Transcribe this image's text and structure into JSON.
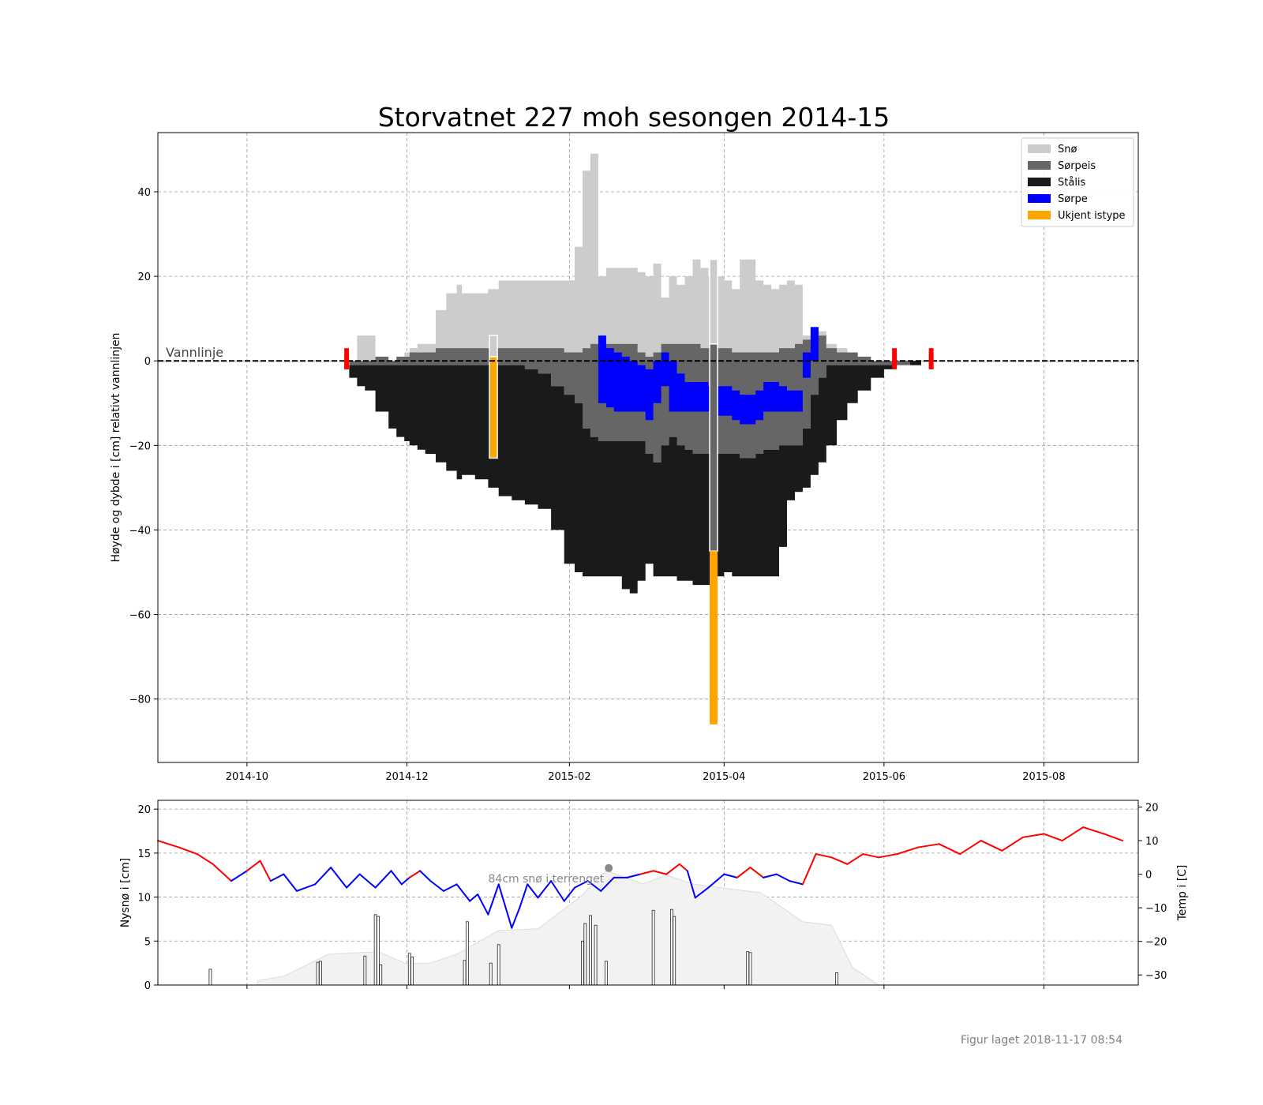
{
  "figure_footer": "Figur laget 2018-11-17 08:54",
  "colors": {
    "snow": "#cccccc",
    "slush_ice": "#666666",
    "black_ice": "#1a1a1a",
    "slush": "#0000ff",
    "unknown_ice": "#ffa500",
    "temp_warm": "#ff0000",
    "temp_cold": "#0000ff",
    "snow_depth_fill": "#f2f2f2",
    "red_marker": "#ff0000"
  },
  "chart_data": [
    {
      "type": "area",
      "title": "Storvatnet 227 moh sesongen 2014-15",
      "ylabel": "Høyde og dybde i [cm] relativt vannlinjen",
      "xlabel": "",
      "xlim": [
        "2014-08-28",
        "2015-09-06"
      ],
      "ylim": [
        -95,
        54
      ],
      "x_ticks": [
        "2014-10",
        "2014-12",
        "2015-02",
        "2015-04",
        "2015-06",
        "2015-08"
      ],
      "x_tick_dates": [
        "2014-10-01",
        "2014-12-01",
        "2015-02-01",
        "2015-04-01",
        "2015-06-01",
        "2015-08-01"
      ],
      "y_ticks": [
        40,
        20,
        0,
        -20,
        -40,
        -60,
        -80
      ],
      "grid": true,
      "legend_position": "top-right",
      "legend": [
        "Snø",
        "Sørpeis",
        "Stålis",
        "Sørpe",
        "Ukjent istype"
      ],
      "annotation": "Vannlinje",
      "waterline": 0,
      "red_markers": [
        "2014-11-08",
        "2015-06-05",
        "2015-06-19"
      ],
      "ice_profile": {
        "dates": [
          "2014-11-09",
          "2014-11-12",
          "2014-11-15",
          "2014-11-19",
          "2014-11-24",
          "2014-11-27",
          "2014-11-30",
          "2014-12-02",
          "2014-12-05",
          "2014-12-08",
          "2014-12-12",
          "2014-12-16",
          "2014-12-20",
          "2014-12-22",
          "2014-12-24",
          "2014-12-27",
          "2014-12-29",
          "2015-01-01",
          "2015-01-05",
          "2015-01-10",
          "2015-01-15",
          "2015-01-20",
          "2015-01-25",
          "2015-01-30",
          "2015-02-03",
          "2015-02-06",
          "2015-02-09",
          "2015-02-12",
          "2015-02-15",
          "2015-02-18",
          "2015-02-21",
          "2015-02-24",
          "2015-02-27",
          "2015-03-02",
          "2015-03-05",
          "2015-03-08",
          "2015-03-11",
          "2015-03-14",
          "2015-03-17",
          "2015-03-20",
          "2015-03-23",
          "2015-03-26",
          "2015-03-29",
          "2015-04-01",
          "2015-04-04",
          "2015-04-07",
          "2015-04-10",
          "2015-04-13",
          "2015-04-16",
          "2015-04-19",
          "2015-04-22",
          "2015-04-25",
          "2015-04-28",
          "2015-05-01",
          "2015-05-04",
          "2015-05-07",
          "2015-05-10",
          "2015-05-14",
          "2015-05-18",
          "2015-05-22",
          "2015-05-27",
          "2015-06-01",
          "2015-06-05",
          "2015-06-08",
          "2015-06-11",
          "2015-06-14"
        ],
        "snow_top": [
          0,
          6,
          6,
          1,
          0,
          1,
          2,
          3,
          4,
          4,
          12,
          16,
          18,
          16,
          16,
          16,
          16,
          17,
          19,
          19,
          19,
          19,
          19,
          19,
          27,
          45,
          49,
          20,
          22,
          22,
          22,
          22,
          21,
          20,
          23,
          15,
          20,
          18,
          20,
          24,
          22,
          20,
          20,
          19,
          17,
          24,
          24,
          19,
          18,
          17,
          18,
          19,
          18,
          6,
          8,
          7,
          4,
          3,
          2,
          1,
          0,
          0,
          0,
          0,
          0,
          0
        ],
        "slush_ice_top": [
          0,
          0,
          0,
          1,
          0,
          1,
          1,
          2,
          2,
          2,
          3,
          3,
          3,
          3,
          3,
          3,
          3,
          3,
          3,
          3,
          3,
          3,
          3,
          2,
          2,
          3,
          4,
          4,
          4,
          4,
          4,
          4,
          2,
          1,
          2,
          4,
          4,
          4,
          4,
          4,
          3,
          3,
          3,
          3,
          2,
          2,
          2,
          2,
          2,
          2,
          3,
          3,
          4,
          5,
          8,
          6,
          3,
          2,
          2,
          1,
          0,
          0,
          0,
          0,
          0,
          0
        ],
        "slush_top": [
          0,
          0,
          0,
          0,
          0,
          0,
          0,
          0,
          0,
          0,
          0,
          0,
          0,
          0,
          0,
          0,
          0,
          0,
          0,
          0,
          0,
          0,
          0,
          0,
          0,
          0,
          0,
          6,
          3,
          2,
          1,
          0,
          -1,
          -2,
          0,
          2,
          0,
          -3,
          -5,
          -5,
          -5,
          -6,
          -6,
          -6,
          -7,
          -8,
          -8,
          -7,
          -5,
          -5,
          -6,
          -7,
          -7,
          2,
          8,
          0,
          0,
          0,
          0,
          0,
          0,
          0,
          0,
          0,
          0,
          0
        ],
        "slush_bottom": [
          0,
          0,
          0,
          0,
          0,
          0,
          0,
          0,
          0,
          0,
          0,
          0,
          0,
          0,
          0,
          0,
          0,
          0,
          0,
          0,
          0,
          0,
          0,
          0,
          0,
          0,
          0,
          -10,
          -11,
          -12,
          -12,
          -12,
          -12,
          -14,
          -10,
          -6,
          -12,
          -12,
          -12,
          -12,
          -12,
          -12,
          -13,
          -13,
          -14,
          -15,
          -15,
          -14,
          -12,
          -12,
          -12,
          -12,
          -12,
          -4,
          0,
          0,
          0,
          0,
          0,
          0,
          0,
          0,
          0,
          0,
          0,
          0
        ],
        "black_ice_top": [
          -1,
          -1,
          -1,
          -1,
          -1,
          -1,
          -1,
          -1,
          -1,
          -1,
          -1,
          -1,
          -1,
          -1,
          -1,
          -1,
          -1,
          -1,
          -1,
          -1,
          -2,
          -3,
          -6,
          -8,
          -10,
          -16,
          -18,
          -19,
          -19,
          -19,
          -19,
          -19,
          -19,
          -22,
          -24,
          -20,
          -18,
          -20,
          -21,
          -22,
          -22,
          -22,
          -22,
          -22,
          -22,
          -23,
          -23,
          -22,
          -21,
          -21,
          -20,
          -20,
          -20,
          -16,
          -8,
          -4,
          -1,
          -1,
          -1,
          -1,
          -1,
          -1,
          -1,
          -1,
          -1,
          -1
        ],
        "ice_bottom": [
          -4,
          -6,
          -7,
          -12,
          -16,
          -18,
          -19,
          -20,
          -21,
          -22,
          -24,
          -26,
          -28,
          -27,
          -27,
          -28,
          -28,
          -30,
          -32,
          -33,
          -34,
          -35,
          -40,
          -48,
          -50,
          -51,
          -51,
          -51,
          -51,
          -51,
          -54,
          -55,
          -52,
          -48,
          -51,
          -51,
          -51,
          -52,
          -52,
          -53,
          -53,
          -53,
          -51,
          -50,
          -51,
          -51,
          -51,
          -51,
          -51,
          -51,
          -44,
          -33,
          -31,
          -30,
          -27,
          -24,
          -20,
          -14,
          -10,
          -7,
          -4,
          -2,
          -1,
          -1,
          0,
          0
        ]
      },
      "point_measurements": [
        {
          "date": "2015-01-03",
          "snow_top": 6,
          "unknown_top": 1,
          "unknown_bottom": -23
        },
        {
          "date": "2015-03-28",
          "snow_top": 24,
          "slush_ice_top": 4,
          "slush_ice_bottom": -45,
          "unknown_bottom": -86
        }
      ]
    },
    {
      "type": "bar",
      "ylabel": "Nysnø i [cm]",
      "ylabel_right": "Temp i [C]",
      "ylim": [
        0,
        21
      ],
      "y_ticks": [
        0,
        5,
        10,
        15,
        20
      ],
      "ylim_right": [
        -33,
        22
      ],
      "y_ticks_right": [
        20,
        10,
        0,
        -10,
        -20,
        -30
      ],
      "grid": true,
      "annotation": "84cm snø i terrenget",
      "annotation_point": {
        "date": "2015-02-16",
        "value": 13.3
      },
      "new_snow": [
        {
          "date": "2014-09-17",
          "value": 1.8
        },
        {
          "date": "2014-10-28",
          "value": 2.6
        },
        {
          "date": "2014-10-29",
          "value": 2.7
        },
        {
          "date": "2014-11-15",
          "value": 3.3
        },
        {
          "date": "2014-11-19",
          "value": 8.0
        },
        {
          "date": "2014-11-20",
          "value": 7.8
        },
        {
          "date": "2014-11-21",
          "value": 2.3
        },
        {
          "date": "2014-12-02",
          "value": 3.6
        },
        {
          "date": "2014-12-03",
          "value": 3.2
        },
        {
          "date": "2014-12-23",
          "value": 2.8
        },
        {
          "date": "2014-12-24",
          "value": 7.2
        },
        {
          "date": "2015-01-02",
          "value": 2.5
        },
        {
          "date": "2015-01-05",
          "value": 4.6
        },
        {
          "date": "2015-02-06",
          "value": 5.0
        },
        {
          "date": "2015-02-07",
          "value": 7.0
        },
        {
          "date": "2015-02-09",
          "value": 7.9
        },
        {
          "date": "2015-02-11",
          "value": 6.8
        },
        {
          "date": "2015-02-15",
          "value": 2.7
        },
        {
          "date": "2015-03-05",
          "value": 8.5
        },
        {
          "date": "2015-03-12",
          "value": 8.6
        },
        {
          "date": "2015-03-13",
          "value": 7.8
        },
        {
          "date": "2015-04-10",
          "value": 3.8
        },
        {
          "date": "2015-04-11",
          "value": 3.7
        },
        {
          "date": "2015-05-14",
          "value": 1.4
        }
      ],
      "snow_depth_terrain": {
        "dates": [
          "2014-10-05",
          "2014-10-15",
          "2014-11-01",
          "2014-11-20",
          "2014-12-01",
          "2014-12-10",
          "2014-12-20",
          "2015-01-05",
          "2015-01-20",
          "2015-02-05",
          "2015-02-15",
          "2015-03-01",
          "2015-03-10",
          "2015-03-20",
          "2015-04-01",
          "2015-04-15",
          "2015-05-01",
          "2015-05-12",
          "2015-05-20",
          "2015-05-30"
        ],
        "values": [
          0.5,
          1.0,
          3.5,
          3.8,
          2.4,
          2.5,
          3.5,
          6.2,
          6.4,
          10.0,
          13.0,
          11.5,
          12.5,
          11.5,
          11.0,
          10.5,
          7.2,
          6.8,
          2.0,
          0
        ]
      },
      "temperature": {
        "dates": [
          "2014-08-28",
          "2014-09-05",
          "2014-09-12",
          "2014-09-18",
          "2014-09-25",
          "2014-10-01",
          "2014-10-06",
          "2014-10-10",
          "2014-10-15",
          "2014-10-20",
          "2014-10-27",
          "2014-11-02",
          "2014-11-08",
          "2014-11-13",
          "2014-11-19",
          "2014-11-25",
          "2014-11-29",
          "2014-12-02",
          "2014-12-06",
          "2014-12-10",
          "2014-12-15",
          "2014-12-20",
          "2014-12-25",
          "2014-12-28",
          "2015-01-01",
          "2015-01-05",
          "2015-01-10",
          "2015-01-13",
          "2015-01-16",
          "2015-01-20",
          "2015-01-25",
          "2015-01-30",
          "2015-02-03",
          "2015-02-08",
          "2015-02-13",
          "2015-02-18",
          "2015-02-23",
          "2015-02-28",
          "2015-03-05",
          "2015-03-10",
          "2015-03-15",
          "2015-03-18",
          "2015-03-21",
          "2015-03-26",
          "2015-04-01",
          "2015-04-06",
          "2015-04-11",
          "2015-04-16",
          "2015-04-21",
          "2015-04-26",
          "2015-05-01",
          "2015-05-06",
          "2015-05-12",
          "2015-05-18",
          "2015-05-24",
          "2015-05-30",
          "2015-06-06",
          "2015-06-14",
          "2015-06-22",
          "2015-06-30",
          "2015-07-08",
          "2015-07-16",
          "2015-07-24",
          "2015-08-01",
          "2015-08-08",
          "2015-08-16",
          "2015-08-24",
          "2015-08-31"
        ],
        "values": [
          10,
          8,
          6,
          3,
          -2,
          1,
          4,
          -2,
          0,
          -5,
          -3,
          2,
          -4,
          0,
          -4,
          1,
          -3,
          -1,
          1,
          -2,
          -5,
          -3,
          -8,
          -6,
          -12,
          -3,
          -16,
          -10,
          -3,
          -7,
          -2,
          -8,
          -4,
          -2,
          -5,
          -1,
          -1,
          0,
          1,
          0,
          3,
          1,
          -7,
          -4,
          0,
          -1,
          2,
          -1,
          0,
          -2,
          -3,
          6,
          5,
          3,
          6,
          5,
          6,
          8,
          9,
          6,
          10,
          7,
          11,
          12,
          10,
          14,
          12,
          10
        ]
      }
    }
  ]
}
